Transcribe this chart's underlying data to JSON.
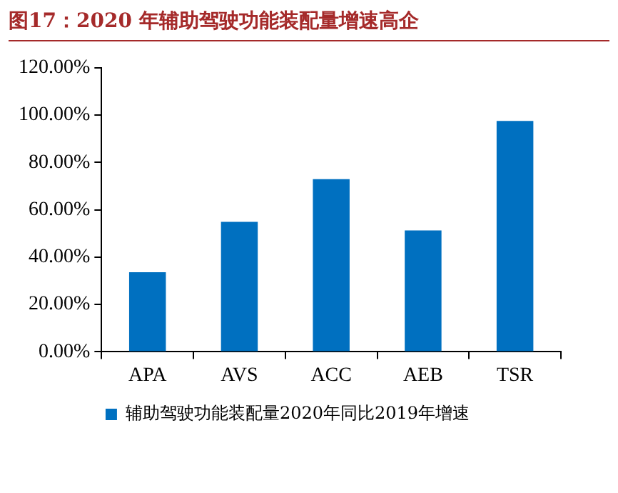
{
  "chart_data": {
    "type": "bar",
    "title": "图17：2020 年辅助驾驶功能装配量增速高企",
    "categories": [
      "APA",
      "AVS",
      "ACC",
      "AEB",
      "TSR"
    ],
    "series": [
      {
        "name": "辅助驾驶功能装配量2020年同比2019年增速",
        "color": "#0070c0",
        "values": [
          33.6,
          54.9,
          72.9,
          51.3,
          97.5
        ]
      }
    ],
    "ylim": [
      0,
      120
    ],
    "yticks": [
      {
        "value": 0,
        "label": "0.00%"
      },
      {
        "value": 20,
        "label": "20.00%"
      },
      {
        "value": 40,
        "label": "40.00%"
      },
      {
        "value": 60,
        "label": "60.00%"
      },
      {
        "value": 80,
        "label": "80.00%"
      },
      {
        "value": 100,
        "label": "100.00%"
      },
      {
        "value": 120,
        "label": "120.00%"
      }
    ],
    "grid": false,
    "legend": "bottom"
  }
}
